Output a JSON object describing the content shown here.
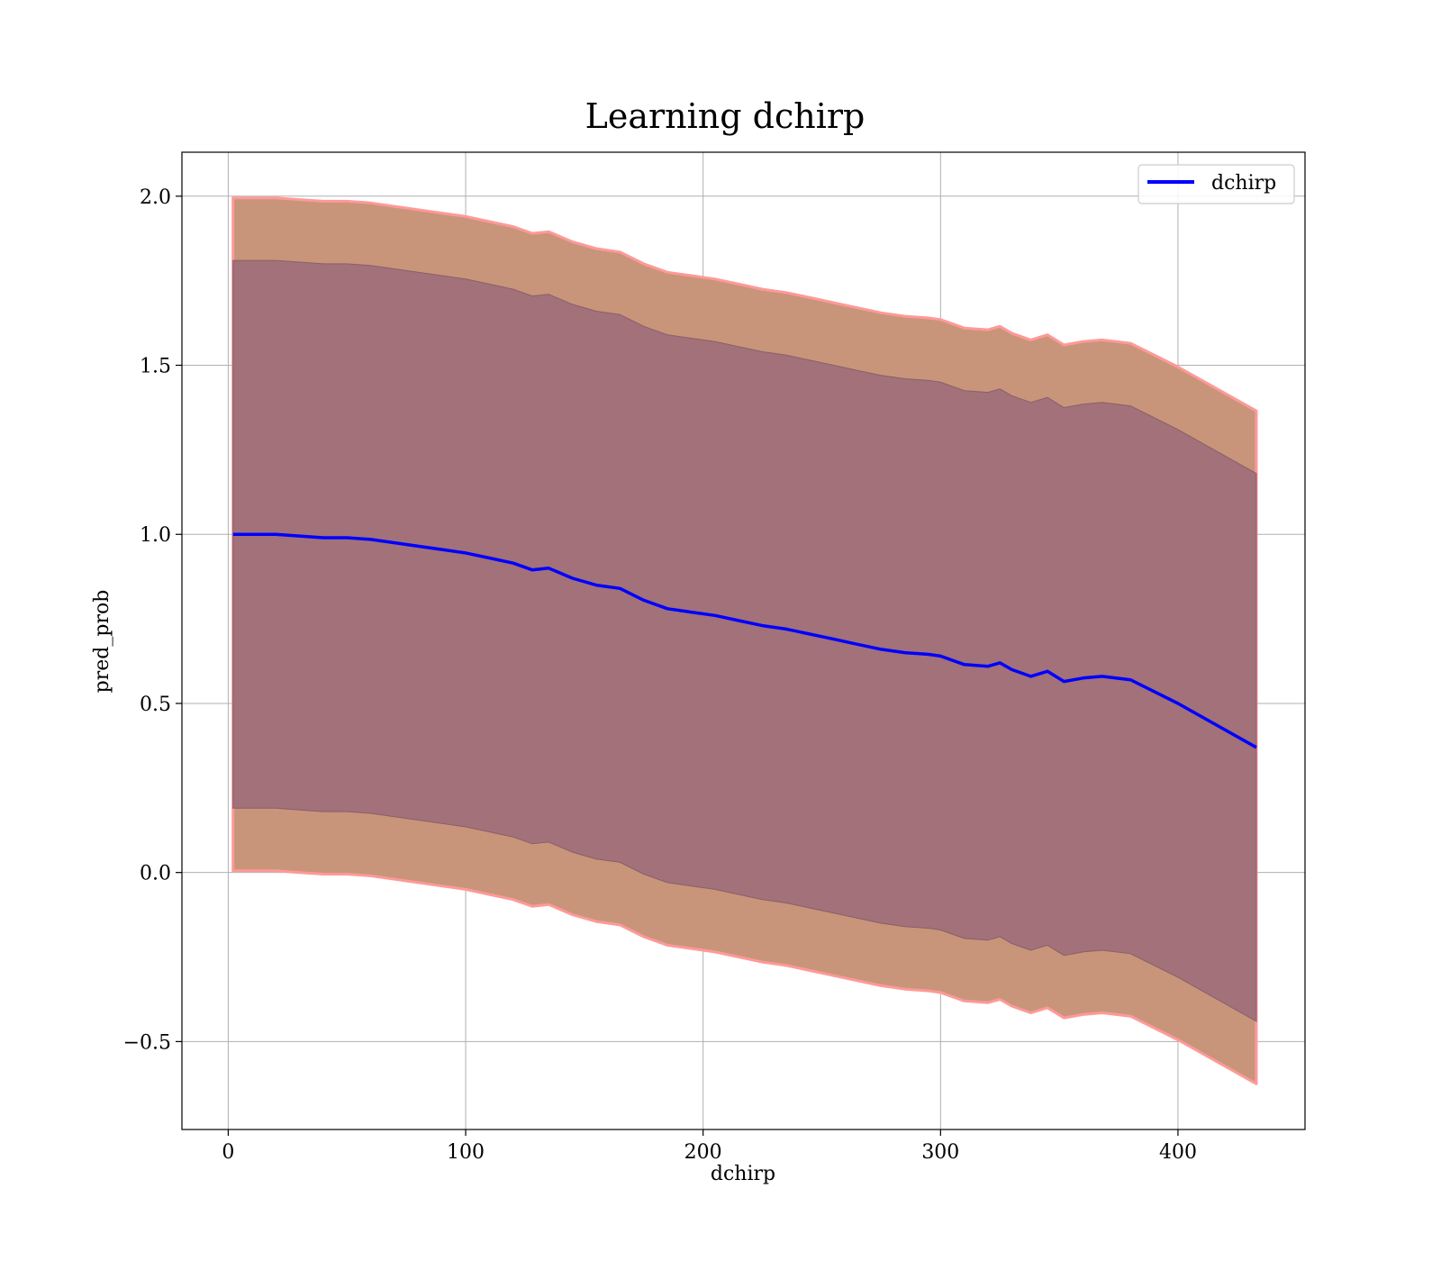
{
  "chart_data": {
    "type": "area",
    "title": "Learning dchirp",
    "xlabel": "dchirp",
    "ylabel": "pred_prob",
    "xlim": [
      -19.5,
      453.5
    ],
    "ylim": [
      -0.76,
      2.13
    ],
    "xticks": [
      0,
      100,
      200,
      300,
      400
    ],
    "xtick_labels": [
      "0",
      "100",
      "200",
      "300",
      "400"
    ],
    "yticks": [
      -0.5,
      0.0,
      0.5,
      1.0,
      1.5,
      2.0
    ],
    "ytick_labels": [
      "−0.5",
      "0.0",
      "0.5",
      "1.0",
      "1.5",
      "2.0"
    ],
    "grid": true,
    "legend": {
      "position": "top-right",
      "entries": [
        "dchirp"
      ]
    },
    "colors": {
      "line": "#0000ff",
      "inner_band": "#a2717a",
      "outer_band": "#c8957a",
      "outer_edge": "#ff9999",
      "grid": "#b0b0b0"
    },
    "series": [
      {
        "name": "dchirp",
        "x": [
          2,
          10,
          20,
          30,
          40,
          50,
          60,
          70,
          80,
          90,
          100,
          110,
          120,
          128,
          135,
          145,
          155,
          165,
          175,
          185,
          195,
          205,
          215,
          225,
          235,
          245,
          255,
          265,
          275,
          285,
          295,
          300,
          310,
          320,
          325,
          330,
          338,
          345,
          352,
          360,
          368,
          380,
          400,
          433
        ],
        "mean": [
          1.0,
          1.0,
          1.0,
          0.995,
          0.99,
          0.99,
          0.985,
          0.975,
          0.965,
          0.955,
          0.945,
          0.93,
          0.915,
          0.895,
          0.9,
          0.87,
          0.85,
          0.84,
          0.805,
          0.78,
          0.77,
          0.76,
          0.745,
          0.73,
          0.72,
          0.705,
          0.69,
          0.675,
          0.66,
          0.65,
          0.645,
          0.64,
          0.615,
          0.61,
          0.62,
          0.6,
          0.58,
          0.595,
          0.565,
          0.575,
          0.58,
          0.57,
          0.5,
          0.37
        ],
        "inner_lower": [
          0.19,
          0.19,
          0.19,
          0.185,
          0.18,
          0.18,
          0.175,
          0.165,
          0.155,
          0.145,
          0.135,
          0.12,
          0.105,
          0.085,
          0.09,
          0.06,
          0.04,
          0.03,
          -0.005,
          -0.03,
          -0.04,
          -0.05,
          -0.065,
          -0.08,
          -0.09,
          -0.105,
          -0.12,
          -0.135,
          -0.15,
          -0.16,
          -0.165,
          -0.17,
          -0.195,
          -0.2,
          -0.19,
          -0.21,
          -0.23,
          -0.215,
          -0.245,
          -0.235,
          -0.23,
          -0.24,
          -0.31,
          -0.44
        ],
        "inner_upper": [
          1.81,
          1.81,
          1.81,
          1.805,
          1.8,
          1.8,
          1.795,
          1.785,
          1.775,
          1.765,
          1.755,
          1.74,
          1.725,
          1.705,
          1.71,
          1.68,
          1.66,
          1.65,
          1.615,
          1.59,
          1.58,
          1.57,
          1.555,
          1.54,
          1.53,
          1.515,
          1.5,
          1.485,
          1.47,
          1.46,
          1.455,
          1.45,
          1.425,
          1.42,
          1.43,
          1.41,
          1.39,
          1.405,
          1.375,
          1.385,
          1.39,
          1.38,
          1.31,
          1.18
        ],
        "outer_lower": [
          0.005,
          0.005,
          0.005,
          0.0,
          -0.005,
          -0.005,
          -0.01,
          -0.02,
          -0.03,
          -0.04,
          -0.05,
          -0.065,
          -0.08,
          -0.1,
          -0.095,
          -0.125,
          -0.145,
          -0.155,
          -0.19,
          -0.215,
          -0.225,
          -0.235,
          -0.25,
          -0.265,
          -0.275,
          -0.29,
          -0.305,
          -0.32,
          -0.335,
          -0.345,
          -0.35,
          -0.355,
          -0.38,
          -0.385,
          -0.375,
          -0.395,
          -0.415,
          -0.4,
          -0.43,
          -0.42,
          -0.415,
          -0.425,
          -0.495,
          -0.625
        ],
        "outer_upper": [
          1.995,
          1.995,
          1.995,
          1.99,
          1.985,
          1.985,
          1.98,
          1.97,
          1.96,
          1.95,
          1.94,
          1.925,
          1.91,
          1.89,
          1.895,
          1.865,
          1.845,
          1.835,
          1.8,
          1.775,
          1.765,
          1.755,
          1.74,
          1.725,
          1.715,
          1.7,
          1.685,
          1.67,
          1.655,
          1.645,
          1.64,
          1.635,
          1.61,
          1.605,
          1.615,
          1.595,
          1.575,
          1.59,
          1.56,
          1.57,
          1.575,
          1.565,
          1.495,
          1.365
        ]
      }
    ]
  }
}
